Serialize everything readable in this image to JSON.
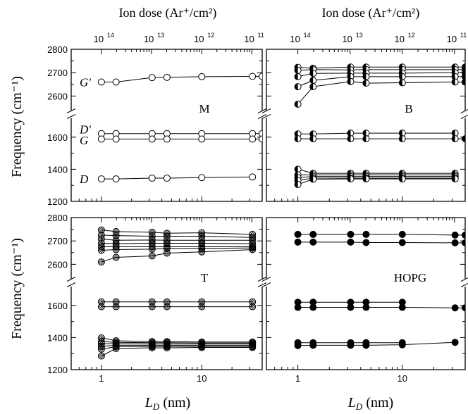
{
  "figure": {
    "top_axis_title": "Ion dose (Ar⁺/cm²)",
    "x_axis_label": "L_D (nm)",
    "y_axis_label": "Frequency (cm⁻¹)",
    "bottom_x_ticks": [
      {
        "value": 1,
        "label": "1"
      },
      {
        "value": 10,
        "label": "10"
      }
    ],
    "top_x_ticks": [
      {
        "value": 1.0,
        "base": "10",
        "exp": "14"
      },
      {
        "value": 3.1623,
        "base": "10",
        "exp": "13"
      },
      {
        "value": 10.0,
        "base": "10",
        "exp": "12"
      },
      {
        "value": 31.623,
        "base": "10",
        "exp": "11"
      }
    ],
    "y_ticks_upper": [
      {
        "value": 2600,
        "label": "2600"
      },
      {
        "value": 2700,
        "label": "2700"
      },
      {
        "value": 2800,
        "label": "2800"
      }
    ],
    "y_ticks_lower": [
      {
        "value": 1200,
        "label": "1200"
      },
      {
        "value": 1400,
        "label": "1400"
      },
      {
        "value": 1600,
        "label": "1600"
      }
    ],
    "peak_labels": {
      "G_prime": "G′",
      "D_prime": "D′",
      "G": "G",
      "D": "D"
    }
  },
  "chart_data": [
    {
      "type": "scatter",
      "panel_label": "M",
      "marker": "open-circle",
      "xscale": "log",
      "xlim": [
        0.5,
        40
      ],
      "ylim_lower": [
        1200,
        1700
      ],
      "ylim_upper": [
        2550,
        2800
      ],
      "series": [
        {
          "peak": "G′",
          "x": [
            1,
            1.4,
            3.2,
            4.5,
            10,
            32,
            40
          ],
          "y": [
            2660,
            2660,
            2679,
            2680,
            2683,
            2684,
            2684
          ]
        },
        {
          "peak": "D′",
          "x": [
            1,
            1.4,
            3.2,
            4.5,
            10,
            32,
            40
          ],
          "y": [
            1622,
            1622,
            1622,
            1622,
            1622,
            1622,
            1622
          ]
        },
        {
          "peak": "G",
          "x": [
            1,
            1.4,
            3.2,
            4.5,
            10,
            32,
            40
          ],
          "y": [
            1588,
            1588,
            1588,
            1588,
            1588,
            1588,
            1588
          ]
        },
        {
          "peak": "D",
          "x": [
            1,
            1.4,
            3.2,
            4.5,
            10,
            32
          ],
          "y": [
            1340,
            1340,
            1345,
            1345,
            1348,
            1352
          ]
        }
      ]
    },
    {
      "type": "scatter",
      "panel_label": "B",
      "marker": "half-filled-circle",
      "xscale": "log",
      "xlim": [
        0.5,
        40
      ],
      "ylim_lower": [
        1200,
        1700
      ],
      "ylim_upper": [
        2550,
        2800
      ],
      "series": [
        {
          "x": [
            1,
            1.4,
            3.2,
            4.5,
            10,
            32,
            40
          ],
          "y": [
            2723,
            2719,
            2724,
            2724,
            2724,
            2724,
            2724
          ]
        },
        {
          "x": [
            1,
            1.4,
            3.2,
            4.5,
            10,
            32,
            40
          ],
          "y": [
            2710,
            2713,
            2712,
            2713,
            2713,
            2713,
            2713
          ]
        },
        {
          "x": [
            1,
            1.4,
            3.2,
            4.5,
            10,
            32,
            40
          ],
          "y": [
            2683,
            2697,
            2698,
            2698,
            2698,
            2700,
            2700
          ]
        },
        {
          "x": [
            1,
            1.4,
            3.2,
            4.5,
            10,
            32,
            40
          ],
          "y": [
            2640,
            2667,
            2683,
            2683,
            2683,
            2683,
            2683
          ]
        },
        {
          "x": [
            1,
            1.4,
            3.2,
            4.5,
            10,
            32,
            40
          ],
          "y": [
            2565,
            2640,
            2662,
            2655,
            2657,
            2660,
            2660
          ]
        },
        {
          "x": [
            1,
            1.4,
            3.2,
            4.5,
            10,
            32
          ],
          "y": [
            1620,
            1620,
            1625,
            1625,
            1625,
            1625
          ]
        },
        {
          "x": [
            1,
            1.4,
            3.2,
            4.5,
            10,
            32,
            40
          ],
          "y": [
            1590,
            1590,
            1590,
            1590,
            1590,
            1590,
            1590
          ]
        },
        {
          "x": [
            1,
            1.4,
            3.2,
            4.5,
            10,
            32
          ],
          "y": [
            1400,
            1375,
            1375,
            1375,
            1375,
            1375
          ]
        },
        {
          "x": [
            1,
            1.4,
            3.2,
            4.5,
            10,
            32
          ],
          "y": [
            1365,
            1365,
            1365,
            1365,
            1365,
            1365
          ]
        },
        {
          "x": [
            1,
            1.4,
            3.2,
            4.5,
            10,
            32
          ],
          "y": [
            1348,
            1355,
            1355,
            1355,
            1355,
            1355
          ]
        },
        {
          "x": [
            1,
            1.4,
            3.2,
            4.5,
            10,
            32
          ],
          "y": [
            1330,
            1345,
            1345,
            1345,
            1345,
            1345
          ]
        },
        {
          "x": [
            1,
            1.4,
            3.2,
            4.5,
            10,
            32
          ],
          "y": [
            1305,
            1338,
            1340,
            1340,
            1340,
            1340
          ]
        }
      ]
    },
    {
      "type": "scatter",
      "panel_label": "T",
      "marker": "crossed-circle",
      "xscale": "log",
      "xlim": [
        0.5,
        40
      ],
      "ylim_lower": [
        1200,
        1700
      ],
      "ylim_upper": [
        2550,
        2800
      ],
      "series": [
        {
          "x": [
            1,
            1.4,
            3.2,
            4.5,
            10,
            32
          ],
          "y": [
            2747,
            2740,
            2737,
            2733,
            2735,
            2728
          ]
        },
        {
          "x": [
            1,
            1.4,
            3.2,
            4.5,
            10,
            32
          ],
          "y": [
            2725,
            2723,
            2720,
            2720,
            2720,
            2715
          ]
        },
        {
          "x": [
            1,
            1.4,
            3.2,
            4.5,
            10,
            32
          ],
          "y": [
            2708,
            2703,
            2704,
            2703,
            2703,
            2703
          ]
        },
        {
          "x": [
            1,
            1.4,
            3.2,
            4.5,
            10,
            32
          ],
          "y": [
            2690,
            2688,
            2690,
            2690,
            2690,
            2688
          ]
        },
        {
          "x": [
            1,
            1.4,
            3.2,
            4.5,
            10,
            32
          ],
          "y": [
            2675,
            2675,
            2675,
            2675,
            2675,
            2675
          ]
        },
        {
          "x": [
            1,
            1.4,
            3.2,
            4.5,
            10,
            32
          ],
          "y": [
            2660,
            2663,
            2665,
            2668,
            2668,
            2670
          ]
        },
        {
          "x": [
            1,
            1.4,
            3.2,
            4.5,
            10,
            32
          ],
          "y": [
            2610,
            2630,
            2636,
            2648,
            2653,
            2663
          ]
        },
        {
          "x": [
            1,
            1.4,
            3.2,
            4.5,
            10,
            32
          ],
          "y": [
            1622,
            1622,
            1622,
            1622,
            1622,
            1622
          ]
        },
        {
          "x": [
            1,
            1.4,
            3.2,
            4.5,
            10,
            32
          ],
          "y": [
            1592,
            1592,
            1592,
            1592,
            1592,
            1592
          ]
        },
        {
          "x": [
            1,
            1.4,
            3.2,
            4.5,
            10,
            32
          ],
          "y": [
            1398,
            1380,
            1375,
            1375,
            1372,
            1372
          ]
        },
        {
          "x": [
            1,
            1.4,
            3.2,
            4.5,
            10,
            32
          ],
          "y": [
            1375,
            1370,
            1368,
            1368,
            1366,
            1366
          ]
        },
        {
          "x": [
            1,
            1.4,
            3.2,
            4.5,
            10,
            32
          ],
          "y": [
            1362,
            1362,
            1360,
            1360,
            1360,
            1360
          ]
        },
        {
          "x": [
            1,
            1.4,
            3.2,
            4.5,
            10,
            32
          ],
          "y": [
            1345,
            1352,
            1352,
            1352,
            1352,
            1352
          ]
        },
        {
          "x": [
            1,
            1.4,
            3.2,
            4.5,
            10,
            32
          ],
          "y": [
            1328,
            1343,
            1344,
            1344,
            1344,
            1344
          ]
        },
        {
          "x": [
            1,
            1.4,
            3.2,
            4.5,
            10,
            32
          ],
          "y": [
            1285,
            1332,
            1336,
            1336,
            1338,
            1338
          ]
        }
      ]
    },
    {
      "type": "scatter",
      "panel_label": "HOPG",
      "marker": "filled-circle",
      "xscale": "log",
      "xlim": [
        0.5,
        40
      ],
      "ylim_lower": [
        1200,
        1700
      ],
      "ylim_upper": [
        2550,
        2800
      ],
      "series": [
        {
          "x": [
            1,
            1.4,
            3.2,
            4.5,
            10,
            32,
            40
          ],
          "y": [
            2728,
            2728,
            2728,
            2728,
            2728,
            2725,
            2725
          ]
        },
        {
          "x": [
            1,
            1.4,
            3.2,
            4.5,
            10,
            32,
            40
          ],
          "y": [
            2695,
            2695,
            2695,
            2693,
            2693,
            2692,
            2692
          ]
        },
        {
          "x": [
            1,
            1.4,
            3.2,
            4.5,
            10
          ],
          "y": [
            1620,
            1620,
            1620,
            1620,
            1620
          ]
        },
        {
          "x": [
            1,
            1.4,
            3.2,
            4.5,
            10,
            32,
            40
          ],
          "y": [
            1588,
            1588,
            1588,
            1588,
            1588,
            1585,
            1585
          ]
        },
        {
          "x": [
            1,
            1.4,
            3.2,
            4.5,
            10
          ],
          "y": [
            1368,
            1368,
            1368,
            1368,
            1368
          ]
        },
        {
          "x": [
            1,
            1.4,
            3.2,
            4.5,
            10,
            32
          ],
          "y": [
            1350,
            1352,
            1352,
            1352,
            1355,
            1370
          ]
        }
      ]
    }
  ]
}
